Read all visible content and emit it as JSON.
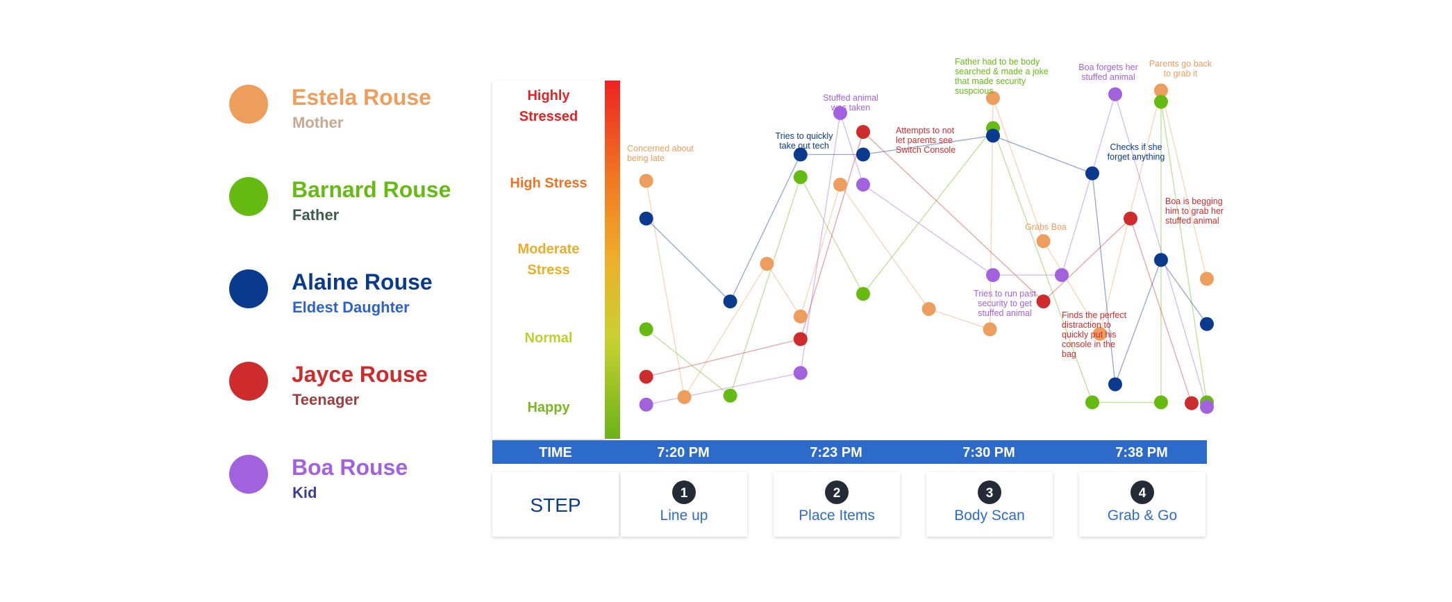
{
  "legend": [
    {
      "name": "Estela Rouse",
      "role": "Mother",
      "color": "#EE9E5C",
      "role_color": "#C9A892"
    },
    {
      "name": "Barnard Rouse",
      "role": "Father",
      "color": "#66BB12",
      "role_color": "#3E5D4B"
    },
    {
      "name": "Alaine Rouse",
      "role": "Eldest Daughter",
      "color": "#0A3A8E",
      "role_color": "#2E62C6"
    },
    {
      "name": "Jayce Rouse",
      "role": "Teenager",
      "color": "#CE2C2C",
      "role_color": "#9A4040"
    },
    {
      "name": "Boa Rouse",
      "role": "Kid",
      "color": "#A262DE",
      "role_color": "#3D3D97"
    }
  ],
  "levels": [
    {
      "id": "highly",
      "lines": [
        "Highly",
        "Stressed"
      ],
      "color": "#E52222"
    },
    {
      "id": "high",
      "lines": [
        "High Stress"
      ],
      "color": "#ED7322"
    },
    {
      "id": "moderate",
      "lines": [
        "Moderate",
        "Stress"
      ],
      "color": "#E8AF2A"
    },
    {
      "id": "normal",
      "lines": [
        "Normal"
      ],
      "color": "#C0CF2C"
    },
    {
      "id": "happy",
      "lines": [
        "Happy"
      ],
      "color": "#7AB71E"
    }
  ],
  "time_bar": {
    "label": "TIME",
    "times": [
      "7:20 PM",
      "7:23 PM",
      "7:30 PM",
      "7:38 PM"
    ],
    "color": "#2D6BCB"
  },
  "steps": {
    "label": "STEP",
    "items": [
      {
        "number": "1",
        "label": "Line up"
      },
      {
        "number": "2",
        "label": "Place Items"
      },
      {
        "number": "3",
        "label": "Body Scan"
      },
      {
        "number": "4",
        "label": "Grab & Go"
      }
    ]
  },
  "chart_data": {
    "type": "scatter",
    "y_categories": [
      "Happy",
      "Normal",
      "Moderate Stress",
      "High Stress",
      "Highly Stressed"
    ],
    "x_categories": [
      "7:20 PM",
      "7:23 PM",
      "7:30 PM",
      "7:38 PM"
    ],
    "series": [
      {
        "name": "Estela Rouse",
        "color": "#EE9E5C",
        "points": [
          {
            "x": 0.03,
            "y": 3.0
          },
          {
            "x": 0.28,
            "y": 0.13
          },
          {
            "x": 0.82,
            "y": 1.9
          },
          {
            "x": 1.04,
            "y": 1.2
          },
          {
            "x": 1.3,
            "y": 2.95
          },
          {
            "x": 1.88,
            "y": 1.3
          },
          {
            "x": 2.28,
            "y": 1.03
          },
          {
            "x": 2.3,
            "y": 4.1
          },
          {
            "x": 2.63,
            "y": 2.2
          },
          {
            "x": 3.0,
            "y": 0.97
          },
          {
            "x": 3.4,
            "y": 4.2
          },
          {
            "x": 3.7,
            "y": 1.7
          }
        ]
      },
      {
        "name": "Barnard Rouse",
        "color": "#66BB12",
        "points": [
          {
            "x": 0.03,
            "y": 1.03
          },
          {
            "x": 0.58,
            "y": 0.15
          },
          {
            "x": 1.04,
            "y": 3.05
          },
          {
            "x": 1.45,
            "y": 1.5
          },
          {
            "x": 2.3,
            "y": 3.7
          },
          {
            "x": 2.95,
            "y": 0.06
          },
          {
            "x": 3.4,
            "y": 0.06
          },
          {
            "x": 3.4,
            "y": 4.05
          },
          {
            "x": 3.7,
            "y": 0.06
          }
        ]
      },
      {
        "name": "Alaine Rouse",
        "color": "#0A3A8E",
        "points": [
          {
            "x": 0.03,
            "y": 2.5
          },
          {
            "x": 0.58,
            "y": 1.4
          },
          {
            "x": 1.04,
            "y": 3.35
          },
          {
            "x": 1.45,
            "y": 3.35
          },
          {
            "x": 2.3,
            "y": 3.6
          },
          {
            "x": 2.95,
            "y": 3.1
          },
          {
            "x": 3.1,
            "y": 0.3
          },
          {
            "x": 3.4,
            "y": 1.95
          },
          {
            "x": 3.7,
            "y": 1.1
          }
        ]
      },
      {
        "name": "Jayce Rouse",
        "color": "#CE2C2C",
        "points": [
          {
            "x": 0.03,
            "y": 0.4
          },
          {
            "x": 1.04,
            "y": 0.9
          },
          {
            "x": 1.45,
            "y": 3.65
          },
          {
            "x": 2.63,
            "y": 1.4
          },
          {
            "x": 3.2,
            "y": 2.5
          },
          {
            "x": 3.6,
            "y": 0.05
          }
        ]
      },
      {
        "name": "Boa Rouse",
        "color": "#A262DE",
        "points": [
          {
            "x": 0.03,
            "y": 0.03
          },
          {
            "x": 1.04,
            "y": 0.45
          },
          {
            "x": 1.3,
            "y": 3.9
          },
          {
            "x": 1.45,
            "y": 2.95
          },
          {
            "x": 2.3,
            "y": 1.75
          },
          {
            "x": 2.75,
            "y": 1.75
          },
          {
            "x": 3.1,
            "y": 4.15
          },
          {
            "x": 3.7,
            "y": 0.0
          }
        ]
      }
    ],
    "annotations": [
      {
        "id": "a1",
        "text": [
          "Concerned about",
          "being late"
        ],
        "color": "#EE9E5C",
        "series": "Estela Rouse"
      },
      {
        "id": "a2",
        "text": [
          "Tries to quickly",
          "take out tech"
        ],
        "color": "#0A3A8E",
        "series": "Alaine Rouse"
      },
      {
        "id": "a3",
        "text": [
          "Stuffed animal",
          "was taken"
        ],
        "color": "#A262DE",
        "series": "Boa Rouse"
      },
      {
        "id": "a4",
        "text": [
          "Attempts to not",
          "let parents see",
          "Switch Console"
        ],
        "color": "#CE2C2C",
        "series": "Jayce Rouse"
      },
      {
        "id": "a5",
        "text": [
          "Father had to be body",
          "searched & made a joke",
          "that made security",
          "suspcious"
        ],
        "color": "#66BB12",
        "series": "Barnard Rouse"
      },
      {
        "id": "a6",
        "text": [
          "Boa forgets her",
          "stuffed animal"
        ],
        "color": "#A262DE",
        "series": "Boa Rouse"
      },
      {
        "id": "a7",
        "text": [
          "Parents go back",
          "to grab it"
        ],
        "color": "#EE9E5C",
        "series": "Estela Rouse"
      },
      {
        "id": "a8",
        "text": [
          "Checks if she",
          "forget anything"
        ],
        "color": "#0A3A8E",
        "series": "Alaine Rouse"
      },
      {
        "id": "a9",
        "text": [
          "Grabs Boa"
        ],
        "color": "#EE9E5C",
        "series": "Estela Rouse"
      },
      {
        "id": "a10",
        "text": [
          "Boa is begging",
          "him to grab her",
          "stuffed animal"
        ],
        "color": "#CE2C2C",
        "series": "Jayce Rouse"
      },
      {
        "id": "a11",
        "text": [
          "Tries to run past",
          "security to get",
          "stuffed animal"
        ],
        "color": "#A262DE",
        "series": "Boa Rouse"
      },
      {
        "id": "a12",
        "text": [
          "Finds the perfect",
          "distraction to",
          "quickly put his",
          "console in the",
          "bag"
        ],
        "color": "#CE2C2C",
        "series": "Jayce Rouse"
      }
    ]
  }
}
